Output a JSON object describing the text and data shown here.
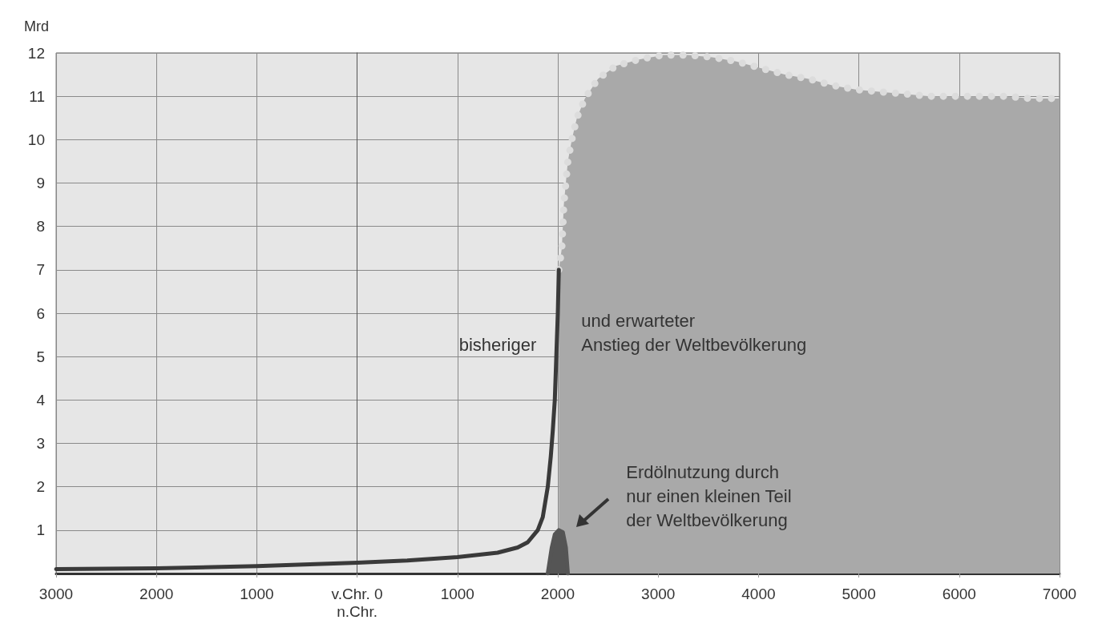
{
  "chart_data": {
    "type": "line",
    "ylabel": "Mrd",
    "annotations": [
      "bisheriger",
      "und erwarteter\nAnstieg der Weltbevölkerung",
      "Erdölnutzung durch\nnur einen kleinen Teil\nder Weltbevölkerung"
    ],
    "series": [
      {
        "color": "#3a3a3a",
        "line_style": "solid",
        "x": [
          -3000,
          -2000,
          -1000,
          0,
          500,
          1000,
          1400,
          1600,
          1700,
          1800,
          1850,
          1900,
          1930,
          1950,
          1970,
          1985,
          2000,
          2010
        ],
        "values": [
          0.1,
          0.12,
          0.17,
          0.25,
          0.3,
          0.38,
          0.48,
          0.6,
          0.72,
          1.0,
          1.3,
          2.0,
          2.7,
          3.3,
          4.0,
          5.0,
          6.0,
          7.0
        ]
      },
      {
        "type": "area",
        "color": "#a9a9a9",
        "line_style": "dotted",
        "x": [
          2010,
          2040,
          2050,
          2060,
          2080,
          2100,
          2140,
          2190,
          2270,
          2400,
          2580,
          2810,
          3050,
          3300,
          3540,
          3780,
          4020,
          4260,
          4500,
          4740,
          4980,
          5220,
          5470,
          5710,
          5950,
          6210,
          6460,
          6700,
          7000
        ],
        "values": [
          7.0,
          7.5,
          8.0,
          8.5,
          9.0,
          9.5,
          10.0,
          10.5,
          10.95,
          11.4,
          11.7,
          11.85,
          11.95,
          11.95,
          11.9,
          11.8,
          11.65,
          11.5,
          11.4,
          11.25,
          11.15,
          11.1,
          11.05,
          11.0,
          11.0,
          11.0,
          11.0,
          10.95,
          10.95
        ]
      },
      {
        "type": "area",
        "color": "#555555",
        "line_style": "solid",
        "x": [
          1900,
          1940,
          1970,
          2010,
          2050,
          2080,
          2100
        ],
        "values": [
          0,
          0.6,
          0.9,
          1.0,
          0.95,
          0.6,
          0
        ]
      }
    ],
    "xlim": [
      -3000,
      7000
    ],
    "xticks": [
      {
        "value": -3000,
        "label": "3000"
      },
      {
        "value": -2000,
        "label": "2000"
      },
      {
        "value": -1000,
        "label": "1000"
      },
      {
        "value": 0,
        "label": "v.Chr. 0\nn.Chr."
      },
      1000,
      2000,
      3000,
      4000,
      5000,
      6000,
      7000
    ],
    "ylim": [
      0,
      12
    ],
    "yticks": [
      {
        "value": 0,
        "label": null
      },
      1,
      2,
      3,
      4,
      5,
      6,
      7,
      8,
      9,
      10,
      11,
      12
    ],
    "grid": true,
    "marker": "none"
  }
}
